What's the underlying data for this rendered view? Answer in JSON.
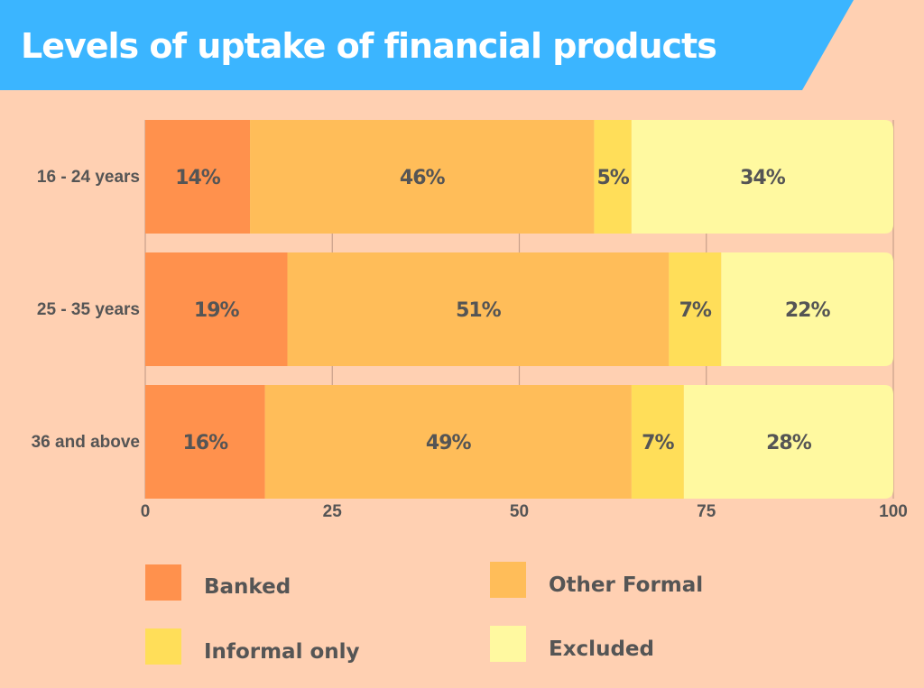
{
  "chart_data": {
    "type": "bar",
    "orientation": "horizontal",
    "stacked": true,
    "title": "Levels of uptake of financial products",
    "categories": [
      "16 - 24 years",
      "25 - 35 years",
      "36 and above"
    ],
    "series": [
      {
        "name": "Banked",
        "color": "#ff914d",
        "values": [
          14,
          19,
          16
        ],
        "labels": [
          "14%",
          "19%",
          "16%"
        ]
      },
      {
        "name": "Other Formal",
        "color": "#ffbd59",
        "values": [
          46,
          51,
          49
        ],
        "labels": [
          "46%",
          "51%",
          "49%"
        ]
      },
      {
        "name": "Informal only",
        "color": "#ffde59",
        "values": [
          5,
          7,
          7
        ],
        "labels": [
          "5%",
          "7%",
          "7%"
        ]
      },
      {
        "name": "Excluded",
        "color": "#fff9a0",
        "values": [
          34,
          22,
          28
        ],
        "labels": [
          "34%",
          "22%",
          "28%"
        ]
      }
    ],
    "xlim": [
      0,
      100
    ],
    "xticks": [
      "0",
      "25",
      "50",
      "75",
      "100"
    ],
    "grid": true,
    "legend_position": "bottom",
    "title_banner_color": "#3bb5ff",
    "background_color": "#ffd0b2"
  }
}
